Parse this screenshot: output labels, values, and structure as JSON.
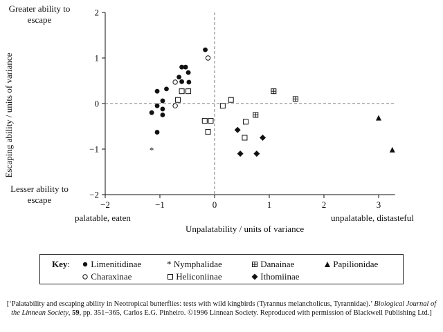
{
  "chart_data": {
    "type": "scatter",
    "xlabel": "Unpalatability / units of variance",
    "ylabel": "Escaping ability / units of variance",
    "xlim": [
      -2,
      3.3
    ],
    "ylim": [
      -2,
      2
    ],
    "x_ticks": [
      "−2",
      "−1",
      "0",
      "1",
      "2",
      "3"
    ],
    "y_ticks": [
      "2",
      "1",
      "0",
      "−1",
      "−2"
    ],
    "x_tick_values": [
      -2,
      -1,
      0,
      1,
      2,
      3
    ],
    "y_tick_values": [
      2,
      1,
      0,
      -1,
      -2
    ],
    "annotations": {
      "top_left": "Greater ability to escape",
      "bottom_left": "Lesser ability to escape",
      "x_left": "palatable, eaten",
      "x_right": "unpalatable, distasteful"
    },
    "series": [
      {
        "name": "Limenitidinae",
        "marker": "filled-circle",
        "points": [
          [
            -0.17,
            1.18
          ],
          [
            -0.6,
            0.8
          ],
          [
            -0.53,
            0.8
          ],
          [
            -0.48,
            0.68
          ],
          [
            -0.65,
            0.58
          ],
          [
            -0.6,
            0.48
          ],
          [
            -0.47,
            0.47
          ],
          [
            -0.88,
            0.32
          ],
          [
            -1.05,
            0.27
          ],
          [
            -0.95,
            0.06
          ],
          [
            -1.05,
            -0.05
          ],
          [
            -0.95,
            -0.12
          ],
          [
            -1.15,
            -0.2
          ],
          [
            -0.95,
            -0.25
          ],
          [
            -1.05,
            -0.63
          ]
        ]
      },
      {
        "name": "Nymphalidae",
        "marker": "asterisk",
        "points": [
          [
            -1.15,
            -1.0
          ]
        ]
      },
      {
        "name": "Danainae",
        "marker": "crossed-square",
        "points": [
          [
            1.08,
            0.27
          ],
          [
            1.48,
            0.1
          ],
          [
            0.75,
            -0.25
          ]
        ]
      },
      {
        "name": "Papilionidae",
        "marker": "filled-triangle",
        "points": [
          [
            3.0,
            -0.32
          ],
          [
            3.25,
            -1.02
          ]
        ]
      },
      {
        "name": "Charaxinae",
        "marker": "open-circle",
        "points": [
          [
            -0.12,
            1.0
          ],
          [
            -0.72,
            0.47
          ],
          [
            -0.72,
            -0.05
          ]
        ]
      },
      {
        "name": "Heliconiinae",
        "marker": "open-square",
        "points": [
          [
            -0.6,
            0.27
          ],
          [
            -0.48,
            0.27
          ],
          [
            -0.67,
            0.08
          ],
          [
            0.3,
            0.08
          ],
          [
            0.15,
            -0.05
          ],
          [
            -0.18,
            -0.38
          ],
          [
            -0.07,
            -0.38
          ],
          [
            0.57,
            -0.4
          ],
          [
            -0.12,
            -0.62
          ],
          [
            0.55,
            -0.75
          ]
        ]
      },
      {
        "name": "Ithomiinae",
        "marker": "filled-diamond",
        "points": [
          [
            0.42,
            -0.58
          ],
          [
            0.88,
            -0.75
          ],
          [
            0.47,
            -1.1
          ],
          [
            0.77,
            -1.1
          ]
        ]
      }
    ]
  },
  "key": {
    "title": "Key",
    "colon": ":",
    "items": [
      {
        "label": "Limenitidinae",
        "marker": "filled-circle"
      },
      {
        "label": "Nymphalidae",
        "marker": "asterisk"
      },
      {
        "label": "Danainae",
        "marker": "crossed-square"
      },
      {
        "label": "Papilionidae",
        "marker": "filled-triangle"
      },
      {
        "label": "Charaxinae",
        "marker": "open-circle"
      },
      {
        "label": "Heliconiinae",
        "marker": "open-square"
      },
      {
        "label": "Ithomiinae",
        "marker": "filled-diamond"
      }
    ]
  },
  "caption": {
    "part1": "[‘Palatability and escaping ability in Neotropical butterflies: tests with wild kingbirds (Tyrannus melancholicus, Tyrannidae).’",
    "journal": "Biological Journal of the Linnean Society",
    "part2": ", ",
    "volume": "59",
    "part3": ", pp. 351−365, Carlos E.G. Pinheiro. ©1996 Linnean Society. Reproduced with permission of Blackwell Publishing Ltd.]"
  }
}
